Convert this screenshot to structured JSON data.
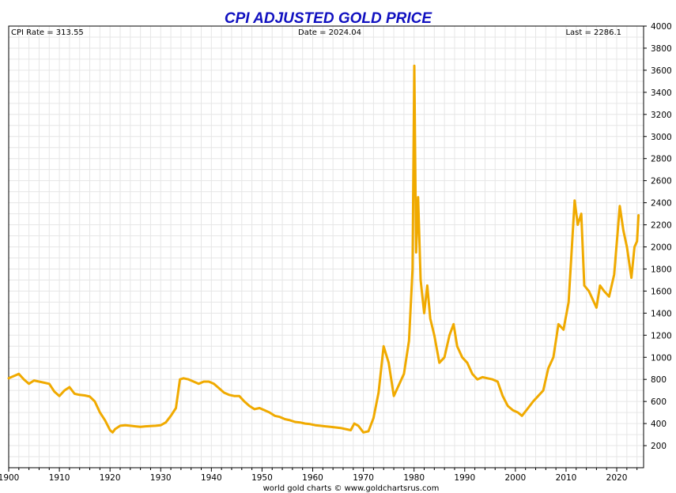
{
  "chart_data": {
    "type": "line",
    "title": "CPI ADJUSTED GOLD PRICE",
    "info": {
      "cpi_rate": "CPI Rate = 313.55",
      "date": "Date = 2024.04",
      "last": "Last = 2286.1"
    },
    "footer": "world gold charts © www.goldchartsrus.com",
    "xlabel": "",
    "ylabel": "",
    "xlim": [
      1900,
      2025.3
    ],
    "ylim": [
      0,
      4000
    ],
    "x_ticks": [
      1900,
      1910,
      1920,
      1930,
      1940,
      1950,
      1960,
      1970,
      1980,
      1990,
      2000,
      2010,
      2020
    ],
    "y_ticks": [
      200,
      400,
      600,
      800,
      1000,
      1200,
      1400,
      1600,
      1800,
      2000,
      2200,
      2400,
      2600,
      2800,
      3000,
      3200,
      3400,
      3600,
      3800,
      4000
    ],
    "grid": true,
    "colors": {
      "line": "#f0aa00",
      "title": "#1010c0",
      "grid": "#e6e6e6"
    },
    "series": [
      {
        "values": [
          [
            1900.0,
            810
          ],
          [
            1901.0,
            830
          ],
          [
            1902.0,
            850
          ],
          [
            1903.0,
            800
          ],
          [
            1904.0,
            760
          ],
          [
            1905.0,
            790
          ],
          [
            1906.0,
            780
          ],
          [
            1907.0,
            770
          ],
          [
            1908.0,
            760
          ],
          [
            1909.0,
            690
          ],
          [
            1910.0,
            650
          ],
          [
            1911.0,
            700
          ],
          [
            1912.0,
            730
          ],
          [
            1913.0,
            670
          ],
          [
            1914.0,
            660
          ],
          [
            1915.0,
            655
          ],
          [
            1916.0,
            645
          ],
          [
            1917.0,
            600
          ],
          [
            1918.0,
            500
          ],
          [
            1919.0,
            430
          ],
          [
            1920.0,
            340
          ],
          [
            1920.5,
            320
          ],
          [
            1921.0,
            350
          ],
          [
            1922.0,
            380
          ],
          [
            1923.0,
            385
          ],
          [
            1924.0,
            380
          ],
          [
            1925.0,
            375
          ],
          [
            1926.0,
            370
          ],
          [
            1927.0,
            375
          ],
          [
            1928.0,
            378
          ],
          [
            1929.0,
            380
          ],
          [
            1930.0,
            385
          ],
          [
            1931.0,
            410
          ],
          [
            1932.0,
            470
          ],
          [
            1933.0,
            540
          ],
          [
            1933.8,
            800
          ],
          [
            1934.5,
            810
          ],
          [
            1935.5,
            800
          ],
          [
            1936.5,
            780
          ],
          [
            1937.5,
            760
          ],
          [
            1938.5,
            780
          ],
          [
            1939.5,
            780
          ],
          [
            1940.5,
            760
          ],
          [
            1941.5,
            720
          ],
          [
            1942.5,
            680
          ],
          [
            1943.5,
            660
          ],
          [
            1944.5,
            650
          ],
          [
            1945.5,
            650
          ],
          [
            1946.5,
            600
          ],
          [
            1947.5,
            560
          ],
          [
            1948.5,
            530
          ],
          [
            1949.5,
            540
          ],
          [
            1950.5,
            520
          ],
          [
            1951.5,
            500
          ],
          [
            1952.5,
            470
          ],
          [
            1953.5,
            460
          ],
          [
            1954.5,
            440
          ],
          [
            1955.5,
            430
          ],
          [
            1956.5,
            415
          ],
          [
            1957.5,
            410
          ],
          [
            1958.5,
            400
          ],
          [
            1959.5,
            395
          ],
          [
            1960.5,
            385
          ],
          [
            1961.5,
            380
          ],
          [
            1962.5,
            375
          ],
          [
            1963.5,
            370
          ],
          [
            1964.5,
            365
          ],
          [
            1965.5,
            360
          ],
          [
            1966.5,
            350
          ],
          [
            1967.5,
            340
          ],
          [
            1968.2,
            400
          ],
          [
            1969.0,
            380
          ],
          [
            1970.0,
            320
          ],
          [
            1971.0,
            330
          ],
          [
            1972.0,
            450
          ],
          [
            1973.0,
            680
          ],
          [
            1974.0,
            1100
          ],
          [
            1975.0,
            950
          ],
          [
            1976.0,
            650
          ],
          [
            1977.0,
            750
          ],
          [
            1978.0,
            850
          ],
          [
            1979.0,
            1150
          ],
          [
            1979.7,
            1800
          ],
          [
            1980.05,
            3640
          ],
          [
            1980.4,
            1950
          ],
          [
            1980.8,
            2450
          ],
          [
            1981.3,
            1700
          ],
          [
            1982.0,
            1400
          ],
          [
            1982.6,
            1650
          ],
          [
            1983.2,
            1350
          ],
          [
            1984.0,
            1200
          ],
          [
            1985.0,
            950
          ],
          [
            1986.0,
            1000
          ],
          [
            1987.0,
            1200
          ],
          [
            1987.8,
            1300
          ],
          [
            1988.5,
            1100
          ],
          [
            1989.5,
            1000
          ],
          [
            1990.5,
            950
          ],
          [
            1991.5,
            850
          ],
          [
            1992.5,
            800
          ],
          [
            1993.5,
            820
          ],
          [
            1994.5,
            810
          ],
          [
            1995.5,
            800
          ],
          [
            1996.5,
            780
          ],
          [
            1997.5,
            650
          ],
          [
            1998.5,
            560
          ],
          [
            1999.5,
            520
          ],
          [
            2000.5,
            500
          ],
          [
            2001.3,
            470
          ],
          [
            2002.5,
            540
          ],
          [
            2003.5,
            600
          ],
          [
            2004.5,
            650
          ],
          [
            2005.5,
            700
          ],
          [
            2006.5,
            900
          ],
          [
            2007.5,
            1000
          ],
          [
            2008.5,
            1300
          ],
          [
            2009.5,
            1250
          ],
          [
            2010.5,
            1500
          ],
          [
            2011.7,
            2420
          ],
          [
            2012.3,
            2200
          ],
          [
            2013.0,
            2300
          ],
          [
            2013.6,
            1650
          ],
          [
            2014.5,
            1600
          ],
          [
            2015.5,
            1500
          ],
          [
            2016.0,
            1450
          ],
          [
            2016.7,
            1650
          ],
          [
            2017.5,
            1600
          ],
          [
            2018.5,
            1550
          ],
          [
            2019.5,
            1750
          ],
          [
            2020.6,
            2370
          ],
          [
            2021.3,
            2150
          ],
          [
            2022.0,
            2000
          ],
          [
            2022.9,
            1720
          ],
          [
            2023.5,
            2000
          ],
          [
            2024.0,
            2050
          ],
          [
            2024.3,
            2286.1
          ]
        ]
      }
    ]
  }
}
